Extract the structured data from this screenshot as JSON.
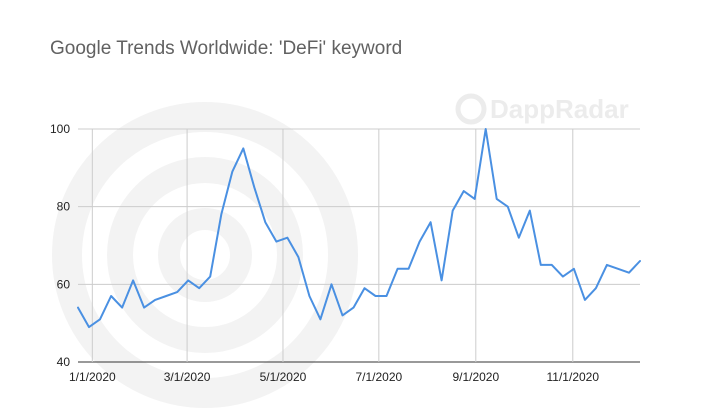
{
  "chart_data": {
    "type": "line",
    "title": "Google Trends Worldwide: 'DeFi' keyword",
    "watermark": "DappRadar",
    "xlabel": "",
    "ylabel": "",
    "ylim": [
      40,
      100
    ],
    "yticks": [
      40,
      60,
      80,
      100
    ],
    "xticks": [
      {
        "label": "1/1/2020",
        "index": 1.3
      },
      {
        "label": "3/1/2020",
        "index": 9.9
      },
      {
        "label": "5/1/2020",
        "index": 18.6
      },
      {
        "label": "7/1/2020",
        "index": 27.3
      },
      {
        "label": "9/1/2020",
        "index": 36.1
      },
      {
        "label": "11/1/2020",
        "index": 44.9
      }
    ],
    "grid": true,
    "line_color": "#4a90e2",
    "series": [
      {
        "values": [
          54,
          49,
          51,
          57,
          54,
          61,
          54,
          56,
          57,
          58,
          61,
          59,
          62,
          78,
          89,
          95,
          85,
          76,
          71,
          72,
          67,
          57,
          51,
          60,
          52,
          54,
          59,
          57,
          57,
          64,
          64,
          71,
          76,
          61,
          79,
          84,
          82,
          100,
          82,
          80,
          72,
          79,
          65,
          65,
          62,
          64,
          56,
          59,
          65,
          64,
          63,
          66
        ]
      }
    ]
  }
}
